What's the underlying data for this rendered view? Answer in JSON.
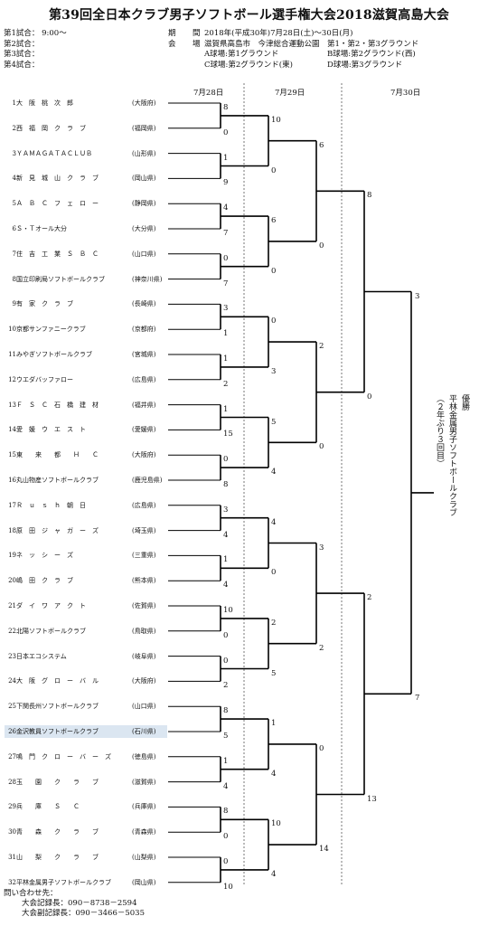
{
  "title": "第39回全日本クラブ男子ソフトボール選手権大会2018滋賀高島大会",
  "schedule": [
    "第1試合： 9:00～",
    "第2試合：",
    "第3試合：",
    "第4試合："
  ],
  "meta": {
    "period_label": "期　間",
    "period": "2018年(平成30年)7月28日(土)～30日(月)",
    "venue_label": "会　場",
    "venue": "滋賀県高島市　今津総合運動公園　第1・第2・第3グラウンド",
    "fields": [
      "A球場:第1グラウンド",
      "B球場:第2グラウンド(西)",
      "C球場:第2グラウンド(東)",
      "D球場:第3グラウンド"
    ]
  },
  "days": [
    "7月28日",
    "7月29日",
    "7月30日"
  ],
  "teams": [
    {
      "num": "1",
      "name": "大　阪　桃　次　郎",
      "pref": "(大阪府)"
    },
    {
      "num": "2",
      "name": "西　福　岡　ク　ラ　ブ",
      "pref": "(福岡県)"
    },
    {
      "num": "3",
      "name": "ＹＡＭＡＧＡＴＡＣＬＵＢ",
      "pref": "(山形県)"
    },
    {
      "num": "4",
      "name": "新　見　城　山　ク　ラ　ブ",
      "pref": "(岡山県)"
    },
    {
      "num": "5",
      "name": "Ａ　Ｂ　Ｃ　フ　ェ　ロ　ー",
      "pref": "(静岡県)"
    },
    {
      "num": "6",
      "name": "Ｓ・Ｔオール大分",
      "pref": "(大分県)"
    },
    {
      "num": "7",
      "name": "住　吉　工　業　Ｓ　Ｂ　Ｃ",
      "pref": "(山口県)"
    },
    {
      "num": "8",
      "name": "国立印刷局ソフトボールクラブ",
      "pref": "(神奈川県)"
    },
    {
      "num": "9",
      "name": "有　家　ク　ラ　ブ",
      "pref": "(長崎県)"
    },
    {
      "num": "10",
      "name": "京都サンファニークラブ",
      "pref": "(京都府)"
    },
    {
      "num": "11",
      "name": "みやぎソフトボールクラブ",
      "pref": "(宮城県)"
    },
    {
      "num": "12",
      "name": "ウエダバッファロー",
      "pref": "(広島県)"
    },
    {
      "num": "13",
      "name": "Ｆ　Ｓ　Ｃ　石　橋　建　材",
      "pref": "(福井県)"
    },
    {
      "num": "14",
      "name": "愛　媛　ウ　エ　ス　ト",
      "pref": "(愛媛県)"
    },
    {
      "num": "15",
      "name": "東　　来　　都　　Ｈ　　Ｃ",
      "pref": "(大阪府)"
    },
    {
      "num": "16",
      "name": "丸山物産ソフトボールクラブ",
      "pref": "(鹿児島県)"
    },
    {
      "num": "17",
      "name": "Ｒ　ｕ　ｓ　ｈ　朝　日",
      "pref": "(広島県)"
    },
    {
      "num": "18",
      "name": "原　田　ジ　ャ　ガ　ー　ズ",
      "pref": "(埼玉県)"
    },
    {
      "num": "19",
      "name": "ネ　ッ　シ　ー　ズ",
      "pref": "(三重県)"
    },
    {
      "num": "20",
      "name": "嶋　田　ク　ラ　ブ",
      "pref": "(熊本県)"
    },
    {
      "num": "21",
      "name": "ダ　イ　ワ　ア　ク　ト",
      "pref": "(佐賀県)"
    },
    {
      "num": "22",
      "name": "北陽ソフトボールクラブ",
      "pref": "(鳥取県)"
    },
    {
      "num": "23",
      "name": "日本エコシステム",
      "pref": "(岐阜県)"
    },
    {
      "num": "24",
      "name": "大　阪　グ　ロ　ー　バ　ル",
      "pref": "(大阪府)"
    },
    {
      "num": "25",
      "name": "下関長州ソフトボールクラブ",
      "pref": "(山口県)"
    },
    {
      "num": "26",
      "name": "金沢教員ソフトボールクラブ",
      "pref": "(石川県)"
    },
    {
      "num": "27",
      "name": "鳴　門　ク　ロ　ー　バ　ー　ズ",
      "pref": "(徳島県)"
    },
    {
      "num": "28",
      "name": "玉　　園　　ク　　ラ　　ブ",
      "pref": "(滋賀県)"
    },
    {
      "num": "29",
      "name": "兵　　庫　　Ｓ　　Ｃ",
      "pref": "(兵庫県)"
    },
    {
      "num": "30",
      "name": "青　　森　　ク　　ラ　　ブ",
      "pref": "(青森県)"
    },
    {
      "num": "31",
      "name": "山　　梨　　ク　　ラ　　ブ",
      "pref": "(山梨県)"
    },
    {
      "num": "32",
      "name": "平林金属男子ソフトボールクラブ",
      "pref": "(岡山県)"
    }
  ],
  "round1_scores": [
    [
      8,
      0
    ],
    [
      1,
      9
    ],
    [
      4,
      7
    ],
    [
      0,
      7
    ],
    [
      3,
      1
    ],
    [
      1,
      2
    ],
    [
      1,
      15
    ],
    [
      0,
      8
    ],
    [
      3,
      4
    ],
    [
      1,
      4
    ],
    [
      10,
      0
    ],
    [
      0,
      2
    ],
    [
      8,
      5
    ],
    [
      1,
      4
    ],
    [
      8,
      0
    ],
    [
      0,
      10
    ]
  ],
  "round2_scores": [
    [
      10,
      0
    ],
    [
      6,
      0
    ],
    [
      0,
      3
    ],
    [
      5,
      4
    ],
    [
      4,
      0
    ],
    [
      2,
      5
    ],
    [
      1,
      4
    ],
    [
      10,
      4
    ],
    [
      5,
      9
    ]
  ],
  "round3_scores": [
    [
      6,
      0
    ],
    [
      2,
      0
    ],
    [
      3,
      2
    ],
    [
      0,
      14
    ]
  ],
  "round4_scores": [
    [
      8,
      0
    ],
    [
      2,
      13
    ]
  ],
  "final_scores": [
    3,
    7
  ],
  "champion": {
    "label": "優勝",
    "team": "平林金属男子ソフトボールクラブ",
    "note": "（２年ぶり３回目）"
  },
  "contact": {
    "heading": "問い合わせ先：",
    "lines": [
      "大会記録長：090－8738－2594",
      "大会副記録長：090－3466－5035"
    ]
  }
}
